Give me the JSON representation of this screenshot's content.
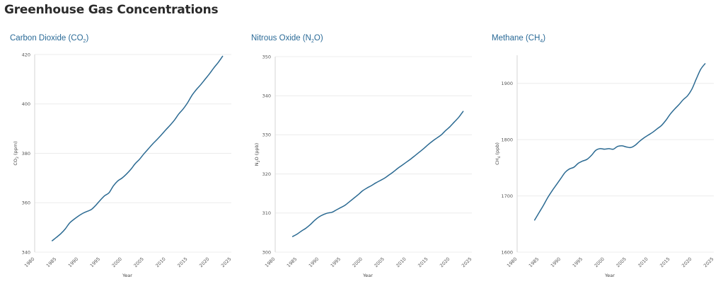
{
  "page": {
    "title": "Greenhouse Gas Concentrations"
  },
  "panels": [
    {
      "title": "Carbon Dioxide (CO",
      "title_sub": "2",
      "title_end": ")"
    },
    {
      "title": "Nitrous Oxide (N",
      "title_sub": "2",
      "title_end": "O)"
    },
    {
      "title": "Methane (CH",
      "title_sub": "4",
      "title_end": ")"
    }
  ],
  "chart_data": [
    {
      "type": "line",
      "title": "Carbon Dioxide (CO2)",
      "xlabel": "Year",
      "ylabel": "CO2 (ppm)",
      "xlim": [
        1980,
        2025
      ],
      "ylim": [
        340,
        420
      ],
      "xticks": [
        1980,
        1985,
        1990,
        1995,
        2000,
        2005,
        2010,
        2015,
        2020,
        2025
      ],
      "yticks": [
        340,
        360,
        380,
        400,
        420
      ],
      "color": "#2b6a92",
      "x": [
        1984,
        1985,
        1986,
        1987,
        1988,
        1989,
        1990,
        1991,
        1992,
        1993,
        1994,
        1995,
        1996,
        1997,
        1998,
        1999,
        2000,
        2001,
        2002,
        2003,
        2004,
        2005,
        2006,
        2007,
        2008,
        2009,
        2010,
        2011,
        2012,
        2013,
        2014,
        2015,
        2016,
        2017,
        2018,
        2019,
        2020,
        2021,
        2022,
        2023
      ],
      "y": [
        344.6,
        346.0,
        347.5,
        349.4,
        351.8,
        353.3,
        354.6,
        355.7,
        356.5,
        357.3,
        359.0,
        361.0,
        362.8,
        364.0,
        366.8,
        368.8,
        370.0,
        371.6,
        373.5,
        375.8,
        377.6,
        379.8,
        381.8,
        383.8,
        385.6,
        387.5,
        389.5,
        391.4,
        393.5,
        396.0,
        398.0,
        400.5,
        403.5,
        405.8,
        407.8,
        410.0,
        412.2,
        414.6,
        416.8,
        419.3
      ]
    },
    {
      "type": "line",
      "title": "Nitrous Oxide (N2O)",
      "xlabel": "Year",
      "ylabel": "N2O (ppb)",
      "xlim": [
        1980,
        2025
      ],
      "ylim": [
        300,
        350
      ],
      "xticks": [
        1980,
        1985,
        1990,
        1995,
        2000,
        2005,
        2010,
        2015,
        2020,
        2025
      ],
      "yticks": [
        300,
        310,
        320,
        330,
        340,
        350
      ],
      "color": "#2b6a92",
      "x": [
        1984,
        1985,
        1986,
        1987,
        1988,
        1989,
        1990,
        1991,
        1992,
        1993,
        1994,
        1995,
        1996,
        1997,
        1998,
        1999,
        2000,
        2001,
        2002,
        2003,
        2004,
        2005,
        2006,
        2007,
        2008,
        2009,
        2010,
        2011,
        2012,
        2013,
        2014,
        2015,
        2016,
        2017,
        2018,
        2019,
        2020,
        2021,
        2022,
        2023
      ],
      "y": [
        304.0,
        304.6,
        305.4,
        306.1,
        307.0,
        308.1,
        309.0,
        309.6,
        310.0,
        310.2,
        310.8,
        311.4,
        312.0,
        312.9,
        313.8,
        314.7,
        315.7,
        316.4,
        317.0,
        317.7,
        318.3,
        318.9,
        319.7,
        320.5,
        321.4,
        322.2,
        323.0,
        323.8,
        324.7,
        325.6,
        326.5,
        327.5,
        328.4,
        329.2,
        330.0,
        331.1,
        332.1,
        333.3,
        334.5,
        336.0
      ]
    },
    {
      "type": "line",
      "title": "Methane (CH4)",
      "xlabel": "Year",
      "ylabel": "CH4 (ppb)",
      "xlim": [
        1980,
        2025
      ],
      "ylim": [
        1600,
        1950
      ],
      "xticks": [
        1980,
        1985,
        1990,
        1995,
        2000,
        2005,
        2010,
        2015,
        2020,
        2025
      ],
      "yticks": [
        1600,
        1700,
        1800,
        1900
      ],
      "color": "#2b6a92",
      "x": [
        1984,
        1985,
        1986,
        1987,
        1988,
        1989,
        1990,
        1991,
        1992,
        1993,
        1994,
        1995,
        1996,
        1997,
        1998,
        1999,
        2000,
        2001,
        2002,
        2003,
        2004,
        2005,
        2006,
        2007,
        2008,
        2009,
        2010,
        2011,
        2012,
        2013,
        2014,
        2015,
        2016,
        2017,
        2018,
        2019,
        2020,
        2021,
        2022,
        2023
      ],
      "y": [
        1657,
        1670,
        1683,
        1697,
        1709,
        1720,
        1731,
        1742,
        1748,
        1751,
        1758,
        1762,
        1765,
        1772,
        1781,
        1784,
        1783,
        1784,
        1783,
        1788,
        1789,
        1787,
        1786,
        1790,
        1797,
        1803,
        1808,
        1813,
        1819,
        1825,
        1834,
        1845,
        1854,
        1862,
        1871,
        1878,
        1890,
        1908,
        1925,
        1935
      ]
    }
  ]
}
